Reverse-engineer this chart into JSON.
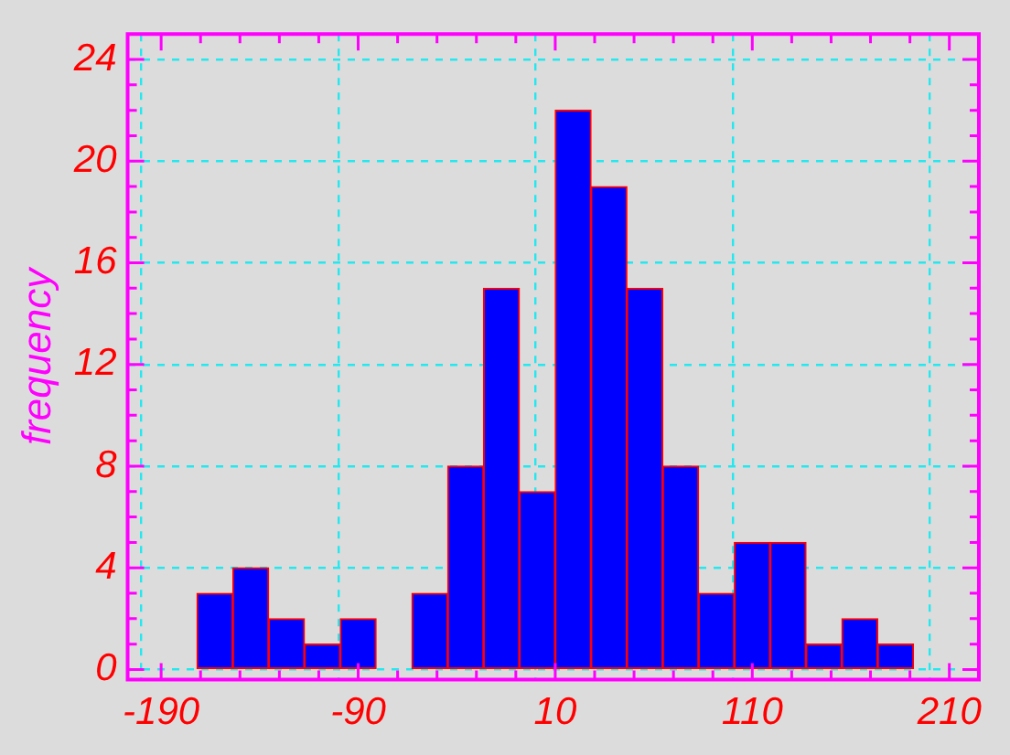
{
  "chart_data": {
    "type": "histogram",
    "ylabel": "frequency",
    "bins": [
      -190,
      -171.82,
      -153.64,
      -135.45,
      -117.27,
      -99.09,
      -80.91,
      -62.73,
      -44.55,
      -26.36,
      -8.18,
      10,
      28.18,
      46.36,
      64.55,
      82.73,
      100.91,
      119.09,
      137.27,
      155.45,
      173.64,
      191.82,
      210
    ],
    "values": [
      0,
      3,
      4,
      2,
      1,
      2,
      0,
      3,
      8,
      15,
      7,
      22,
      19,
      15,
      8,
      3,
      5,
      5,
      1,
      2,
      1,
      0
    ],
    "color": "#0000ff",
    "xlim": [
      -207,
      225
    ],
    "ylim": [
      -0.4,
      25
    ],
    "xticks": [
      -190,
      {
        "value": -170,
        "label": null
      },
      {
        "value": -150,
        "label": null
      },
      {
        "value": -130,
        "label": null
      },
      {
        "value": -110,
        "label": null
      },
      -90,
      {
        "value": -70,
        "label": null
      },
      {
        "value": -50,
        "label": null
      },
      {
        "value": -30,
        "label": null
      },
      {
        "value": -10,
        "label": null
      },
      10,
      {
        "value": 30,
        "label": null
      },
      {
        "value": 50,
        "label": null
      },
      {
        "value": 70,
        "label": null
      },
      {
        "value": 90,
        "label": null
      },
      110,
      {
        "value": 130,
        "label": null
      },
      {
        "value": 150,
        "label": null
      },
      {
        "value": 170,
        "label": null
      },
      {
        "value": 190,
        "label": null
      },
      210
    ],
    "yticks": [
      0,
      {
        "value": 1,
        "label": null
      },
      {
        "value": 2,
        "label": null
      },
      {
        "value": 3,
        "label": null
      },
      4,
      {
        "value": 5,
        "label": null
      },
      {
        "value": 6,
        "label": null
      },
      {
        "value": 7,
        "label": null
      },
      8,
      {
        "value": 9,
        "label": null
      },
      {
        "value": 10,
        "label": null
      },
      {
        "value": 11,
        "label": null
      },
      12,
      {
        "value": 13,
        "label": null
      },
      {
        "value": 14,
        "label": null
      },
      {
        "value": 15,
        "label": null
      },
      16,
      {
        "value": 17,
        "label": null
      },
      {
        "value": 18,
        "label": null
      },
      {
        "value": 19,
        "label": null
      },
      20,
      {
        "value": 21,
        "label": null
      },
      {
        "value": 22,
        "label": null
      },
      {
        "value": 23,
        "label": null
      },
      24
    ],
    "grid": true
  }
}
